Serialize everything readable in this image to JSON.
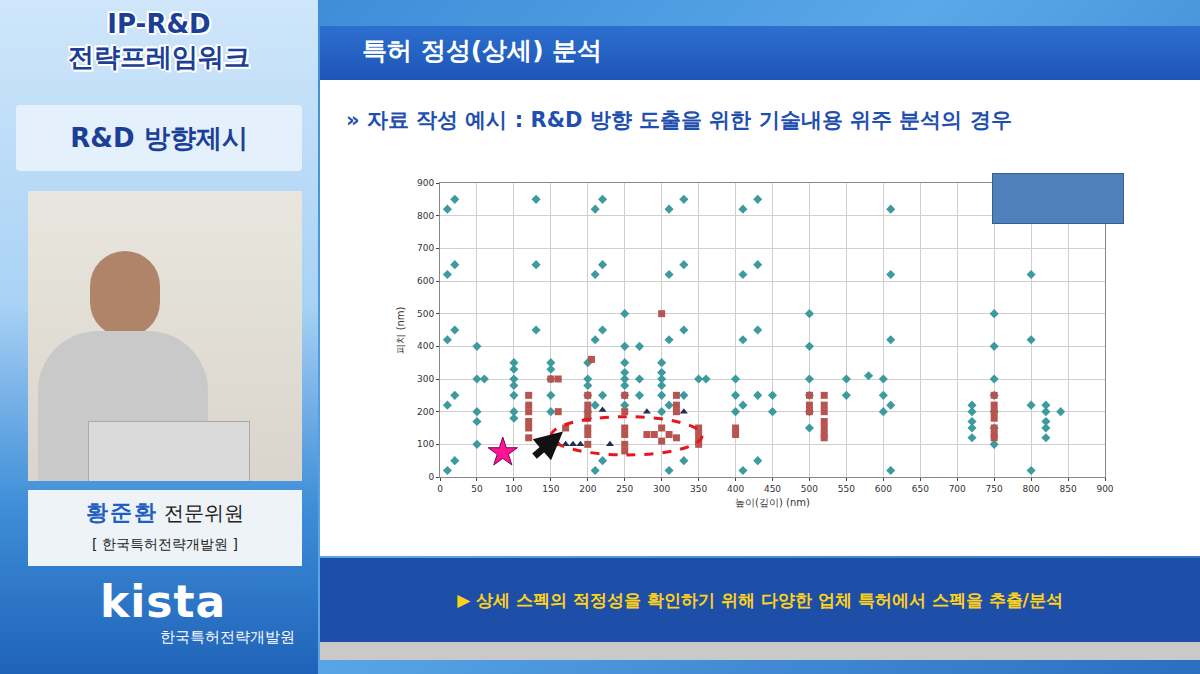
{
  "sidebar": {
    "title_lines": [
      "IP-R&D",
      "전략프레임워크"
    ],
    "section": "R&D 방향제시",
    "speaker_name": "황준환",
    "speaker_role": "전문위원",
    "affiliation": "[ 한국특허전략개발원 ]",
    "logo": "kista",
    "logo_caption": "한국특허전략개발원"
  },
  "slide": {
    "title": "특허 정성(상세) 분석",
    "subtitle": "» 자료 작성 예시 : R&D 방향 도출을 위한 기술내용 위주 분석의 경우",
    "footer": "▶ 상세 스펙의 적정성을 확인하기 위해 다양한 업체 특허에서 스펙을 추출/분석"
  },
  "chart_data": {
    "type": "scatter",
    "x_label": "높이(깊이) (nm)",
    "y_label": "피치 (nm)",
    "xlim": [
      0,
      900
    ],
    "ylim": [
      0,
      900
    ],
    "xticks": [
      0,
      50,
      100,
      150,
      200,
      250,
      300,
      350,
      400,
      450,
      500,
      550,
      600,
      650,
      700,
      750,
      800,
      850,
      900
    ],
    "yticks": [
      0,
      100,
      200,
      300,
      400,
      500,
      600,
      700,
      800,
      900
    ],
    "grid": true,
    "series": [
      {
        "color": "#3d9a9e",
        "marker": "diamond",
        "x": [
          10,
          10,
          10,
          10,
          10,
          20,
          20,
          20,
          20,
          20,
          50,
          50,
          60,
          50,
          50,
          50,
          100,
          100,
          100,
          100,
          100,
          100,
          100,
          130,
          130,
          130,
          150,
          150,
          150,
          150,
          150,
          200,
          200,
          200,
          200,
          200,
          200,
          210,
          210,
          210,
          210,
          210,
          220,
          220,
          220,
          220,
          220,
          250,
          250,
          250,
          250,
          250,
          250,
          250,
          250,
          270,
          270,
          270,
          300,
          300,
          300,
          300,
          300,
          300,
          310,
          310,
          310,
          310,
          310,
          330,
          330,
          330,
          330,
          330,
          350,
          360,
          400,
          400,
          400,
          410,
          410,
          410,
          410,
          410,
          430,
          430,
          430,
          430,
          430,
          450,
          450,
          500,
          500,
          500,
          500,
          500,
          500,
          550,
          550,
          580,
          600,
          600,
          600,
          610,
          610,
          610,
          610,
          610,
          720,
          720,
          720,
          720,
          720,
          750,
          750,
          750,
          750,
          750,
          750,
          750,
          800,
          800,
          800,
          800,
          820,
          820,
          820,
          820,
          820,
          840
        ],
        "values": [
          820,
          620,
          420,
          220,
          20,
          850,
          650,
          450,
          250,
          50,
          400,
          300,
          300,
          200,
          170,
          100,
          350,
          330,
          300,
          280,
          250,
          200,
          180,
          850,
          650,
          450,
          350,
          330,
          300,
          250,
          200,
          350,
          300,
          280,
          250,
          200,
          180,
          820,
          620,
          420,
          220,
          20,
          850,
          650,
          450,
          250,
          50,
          500,
          400,
          350,
          320,
          300,
          280,
          250,
          220,
          400,
          300,
          250,
          350,
          320,
          300,
          280,
          250,
          200,
          820,
          620,
          420,
          220,
          20,
          850,
          650,
          450,
          250,
          50,
          300,
          300,
          300,
          250,
          200,
          820,
          620,
          420,
          220,
          20,
          850,
          650,
          450,
          250,
          50,
          250,
          200,
          500,
          400,
          300,
          250,
          200,
          150,
          300,
          250,
          310,
          300,
          250,
          200,
          820,
          620,
          420,
          220,
          20,
          220,
          200,
          170,
          150,
          120,
          500,
          400,
          300,
          250,
          200,
          150,
          100,
          620,
          420,
          220,
          20,
          220,
          200,
          170,
          150,
          120,
          200
        ]
      },
      {
        "color": "#b85450",
        "marker": "square",
        "x": [
          120,
          120,
          120,
          120,
          120,
          120,
          150,
          160,
          160,
          170,
          200,
          200,
          200,
          200,
          200,
          200,
          200,
          205,
          250,
          250,
          250,
          250,
          250,
          250,
          300,
          280,
          290,
          300,
          310,
          320,
          300,
          320,
          320,
          320,
          350,
          350,
          350,
          350,
          400,
          400,
          500,
          500,
          500,
          520,
          520,
          520,
          520,
          520,
          520,
          520,
          750,
          750,
          750,
          750,
          750,
          750,
          750
        ],
        "values": [
          250,
          220,
          200,
          170,
          150,
          120,
          300,
          300,
          200,
          150,
          250,
          220,
          200,
          180,
          150,
          130,
          100,
          360,
          250,
          200,
          150,
          130,
          100,
          80,
          500,
          130,
          130,
          150,
          130,
          120,
          110,
          250,
          220,
          200,
          150,
          130,
          110,
          100,
          150,
          130,
          250,
          220,
          200,
          250,
          220,
          200,
          170,
          150,
          130,
          120,
          250,
          220,
          200,
          180,
          150,
          130,
          120
        ]
      },
      {
        "color": "#1f2f5a",
        "marker": "triangle-up",
        "x": [
          160,
          170,
          180,
          190,
          220,
          230,
          280,
          330
        ],
        "values": [
          100,
          100,
          100,
          100,
          205,
          100,
          200,
          200
        ]
      },
      {
        "color": "#ff1493",
        "marker": "star",
        "x": [
          85
        ],
        "values": [
          75
        ]
      }
    ]
  }
}
